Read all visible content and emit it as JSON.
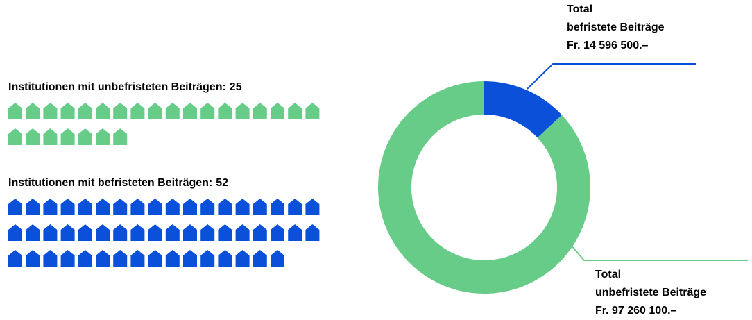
{
  "chart_data": [
    {
      "type": "pictogram",
      "series": [
        {
          "name": "Institutionen mit unbefristeten Beiträgen:",
          "values": [
            25
          ],
          "color": "#66cc88"
        },
        {
          "name": "Institutionen mit befristeten Beiträgen:",
          "values": [
            52
          ],
          "color": "#0a50d8"
        }
      ],
      "per_row": 18
    },
    {
      "type": "donut",
      "categories": [
        [
          "Total",
          "befristete Beiträge"
        ],
        [
          "Total",
          "unbefristete Beiträge"
        ]
      ],
      "values": [
        14596500,
        97260100
      ],
      "value_labels": [
        "Fr. 14 596 500.–",
        "Fr. 97 260 100.–"
      ],
      "colors": [
        "#0a50d8",
        "#66cc88"
      ]
    }
  ]
}
